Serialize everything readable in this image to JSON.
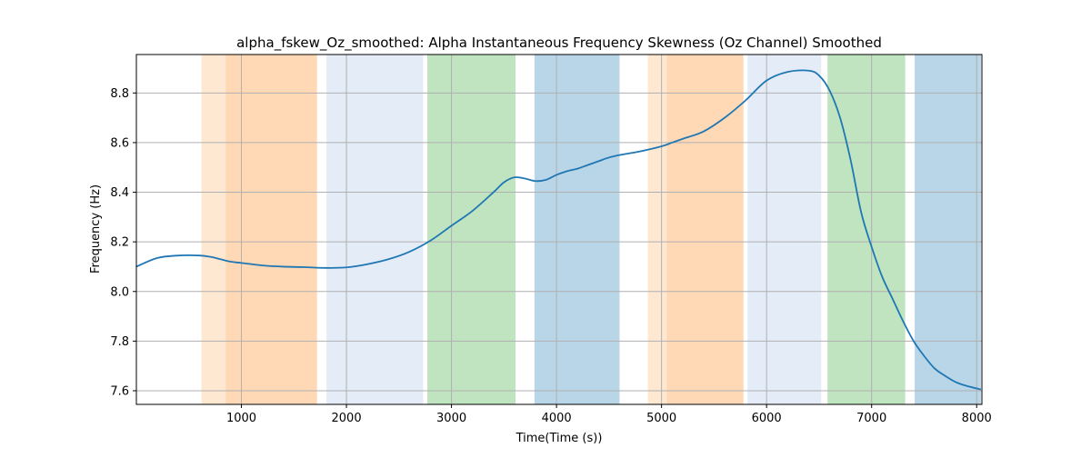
{
  "chart_data": {
    "type": "line",
    "title": "alpha_fskew_Oz_smoothed: Alpha Instantaneous Frequency Skewness (Oz Channel) Smoothed",
    "xlabel": "Time(Time (s))",
    "ylabel": "Frequency (Hz)",
    "xlim": [
      0,
      8050
    ],
    "ylim": [
      7.545,
      8.955
    ],
    "grid": true,
    "x_ticks": [
      1000,
      2000,
      3000,
      4000,
      5000,
      6000,
      7000,
      8000
    ],
    "y_ticks": [
      7.6,
      7.8,
      8.0,
      8.2,
      8.4,
      8.6,
      8.8
    ],
    "line_color": "#1f77b4",
    "shaded_regions": [
      {
        "start": 620,
        "end": 850,
        "color": "#ffe8d2"
      },
      {
        "start": 850,
        "end": 1720,
        "color": "#ffd8b5"
      },
      {
        "start": 1810,
        "end": 2730,
        "color": "#e4ecf7"
      },
      {
        "start": 2770,
        "end": 3610,
        "color": "#c0e3c0"
      },
      {
        "start": 3790,
        "end": 4600,
        "color": "#b9d5e8"
      },
      {
        "start": 4870,
        "end": 5050,
        "color": "#ffe8d2"
      },
      {
        "start": 5050,
        "end": 5780,
        "color": "#ffd8b5"
      },
      {
        "start": 5820,
        "end": 6520,
        "color": "#e4ecf7"
      },
      {
        "start": 6580,
        "end": 7320,
        "color": "#c0e3c0"
      },
      {
        "start": 7410,
        "end": 8040,
        "color": "#b9d5e8"
      }
    ],
    "series": [
      {
        "x": [
          0,
          200,
          400,
          600,
          700,
          800,
          900,
          1000,
          1200,
          1400,
          1600,
          1800,
          2000,
          2200,
          2400,
          2600,
          2800,
          3000,
          3200,
          3400,
          3500,
          3600,
          3700,
          3800,
          3900,
          4000,
          4100,
          4200,
          4300,
          4400,
          4500,
          4600,
          4800,
          5000,
          5100,
          5200,
          5400,
          5600,
          5800,
          6000,
          6200,
          6400,
          6500,
          6600,
          6700,
          6800,
          6900,
          7000,
          7100,
          7200,
          7300,
          7400,
          7500,
          7600,
          7700,
          7800,
          7900,
          8040
        ],
        "y": [
          8.1,
          8.135,
          8.145,
          8.145,
          8.14,
          8.13,
          8.12,
          8.115,
          8.105,
          8.1,
          8.098,
          8.095,
          8.097,
          8.11,
          8.13,
          8.16,
          8.205,
          8.265,
          8.325,
          8.4,
          8.44,
          8.46,
          8.455,
          8.445,
          8.45,
          8.47,
          8.485,
          8.495,
          8.51,
          8.525,
          8.54,
          8.55,
          8.565,
          8.585,
          8.6,
          8.615,
          8.645,
          8.7,
          8.77,
          8.85,
          8.885,
          8.89,
          8.87,
          8.81,
          8.7,
          8.53,
          8.32,
          8.18,
          8.06,
          7.97,
          7.88,
          7.8,
          7.74,
          7.69,
          7.66,
          7.635,
          7.62,
          7.605
        ]
      }
    ]
  }
}
